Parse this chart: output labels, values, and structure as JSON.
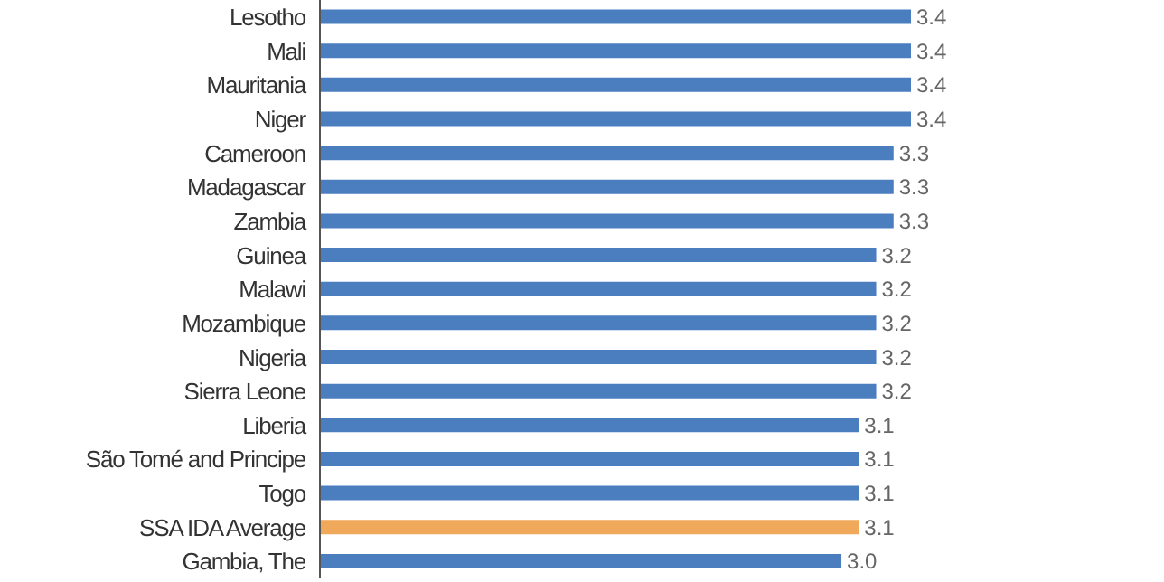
{
  "chart_data": {
    "type": "bar",
    "orientation": "horizontal",
    "categories": [
      "Lesotho",
      "Mali",
      "Mauritania",
      "Niger",
      "Cameroon",
      "Madagascar",
      "Zambia",
      "Guinea",
      "Malawi",
      "Mozambique",
      "Nigeria",
      "Sierra Leone",
      "Liberia",
      "São Tomé and Principe",
      "Togo",
      "SSA IDA Average",
      "Gambia, The"
    ],
    "values": [
      3.4,
      3.4,
      3.4,
      3.4,
      3.3,
      3.3,
      3.3,
      3.2,
      3.2,
      3.2,
      3.2,
      3.2,
      3.1,
      3.1,
      3.1,
      3.1,
      3.0
    ],
    "value_labels": [
      "3.4",
      "3.4",
      "3.4",
      "3.4",
      "3.3",
      "3.3",
      "3.3",
      "3.2",
      "3.2",
      "3.2",
      "3.2",
      "3.2",
      "3.1",
      "3.1",
      "3.1",
      "3.1",
      "3.0"
    ],
    "colors": [
      "#4a7ebf",
      "#4a7ebf",
      "#4a7ebf",
      "#4a7ebf",
      "#4a7ebf",
      "#4a7ebf",
      "#4a7ebf",
      "#4a7ebf",
      "#4a7ebf",
      "#4a7ebf",
      "#4a7ebf",
      "#4a7ebf",
      "#4a7ebf",
      "#4a7ebf",
      "#4a7ebf",
      "#f0a95a",
      "#4a7ebf"
    ]
  }
}
